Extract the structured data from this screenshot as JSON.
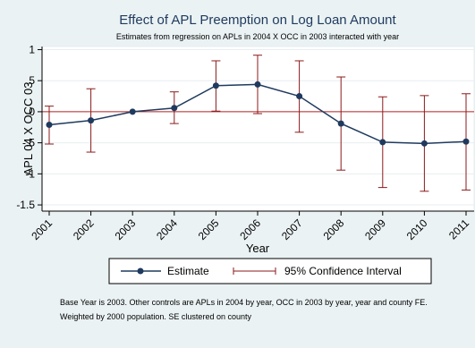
{
  "chart_data": {
    "type": "line",
    "title": "Effect of APL Preemption on Log Loan Amount",
    "subtitle": "Estimates from regression on APLs in 2004 X OCC in 2003 interacted with year",
    "xlabel": "Year",
    "ylabel": "APL 04 X OCC 03",
    "categories": [
      "2001",
      "2002",
      "2003",
      "2004",
      "2005",
      "2006",
      "2007",
      "2008",
      "2009",
      "2010",
      "2011"
    ],
    "ylim": [
      -1.6,
      1.05
    ],
    "yticks": [
      {
        "value": 1,
        "label": "1"
      },
      {
        "value": 0.5,
        "label": ".5"
      },
      {
        "value": 0,
        "label": "0"
      },
      {
        "value": -0.5,
        "label": "-.5"
      },
      {
        "value": -1,
        "label": "-1"
      },
      {
        "value": -1.5,
        "label": "-1.5"
      }
    ],
    "reference_line": 0,
    "series": [
      {
        "name": "Estimate",
        "color": "#1f3a5f",
        "values": [
          -0.21,
          -0.14,
          0.0,
          0.06,
          0.42,
          0.44,
          0.25,
          -0.19,
          -0.49,
          -0.51,
          -0.48
        ]
      }
    ],
    "confidence_interval": {
      "name": "95% Confidence Interval",
      "color": "#8b1a1a",
      "lower": [
        -0.52,
        -0.65,
        0.0,
        -0.19,
        0.01,
        -0.03,
        -0.33,
        -0.94,
        -1.22,
        -1.28,
        -1.26
      ],
      "upper": [
        0.09,
        0.37,
        0.0,
        0.32,
        0.82,
        0.91,
        0.82,
        0.56,
        0.24,
        0.26,
        0.29
      ]
    },
    "legend": {
      "placement": "bottom",
      "items": [
        "Estimate",
        "95% Confidence Interval"
      ]
    },
    "note_lines": [
      "Base Year is 2003. Other controls are APLs in 2004 by year, OCC in 2003 by year, year and county FE.",
      "Weighted by 2000 population. SE clustered on county"
    ],
    "colors": {
      "outer_background": "#eaf2f3",
      "plot_background": "#ffffff",
      "grid": "#e7eef0",
      "reference_line": "#b22222",
      "estimate": "#1f3a5f",
      "ci": "#8b1a1a"
    }
  }
}
